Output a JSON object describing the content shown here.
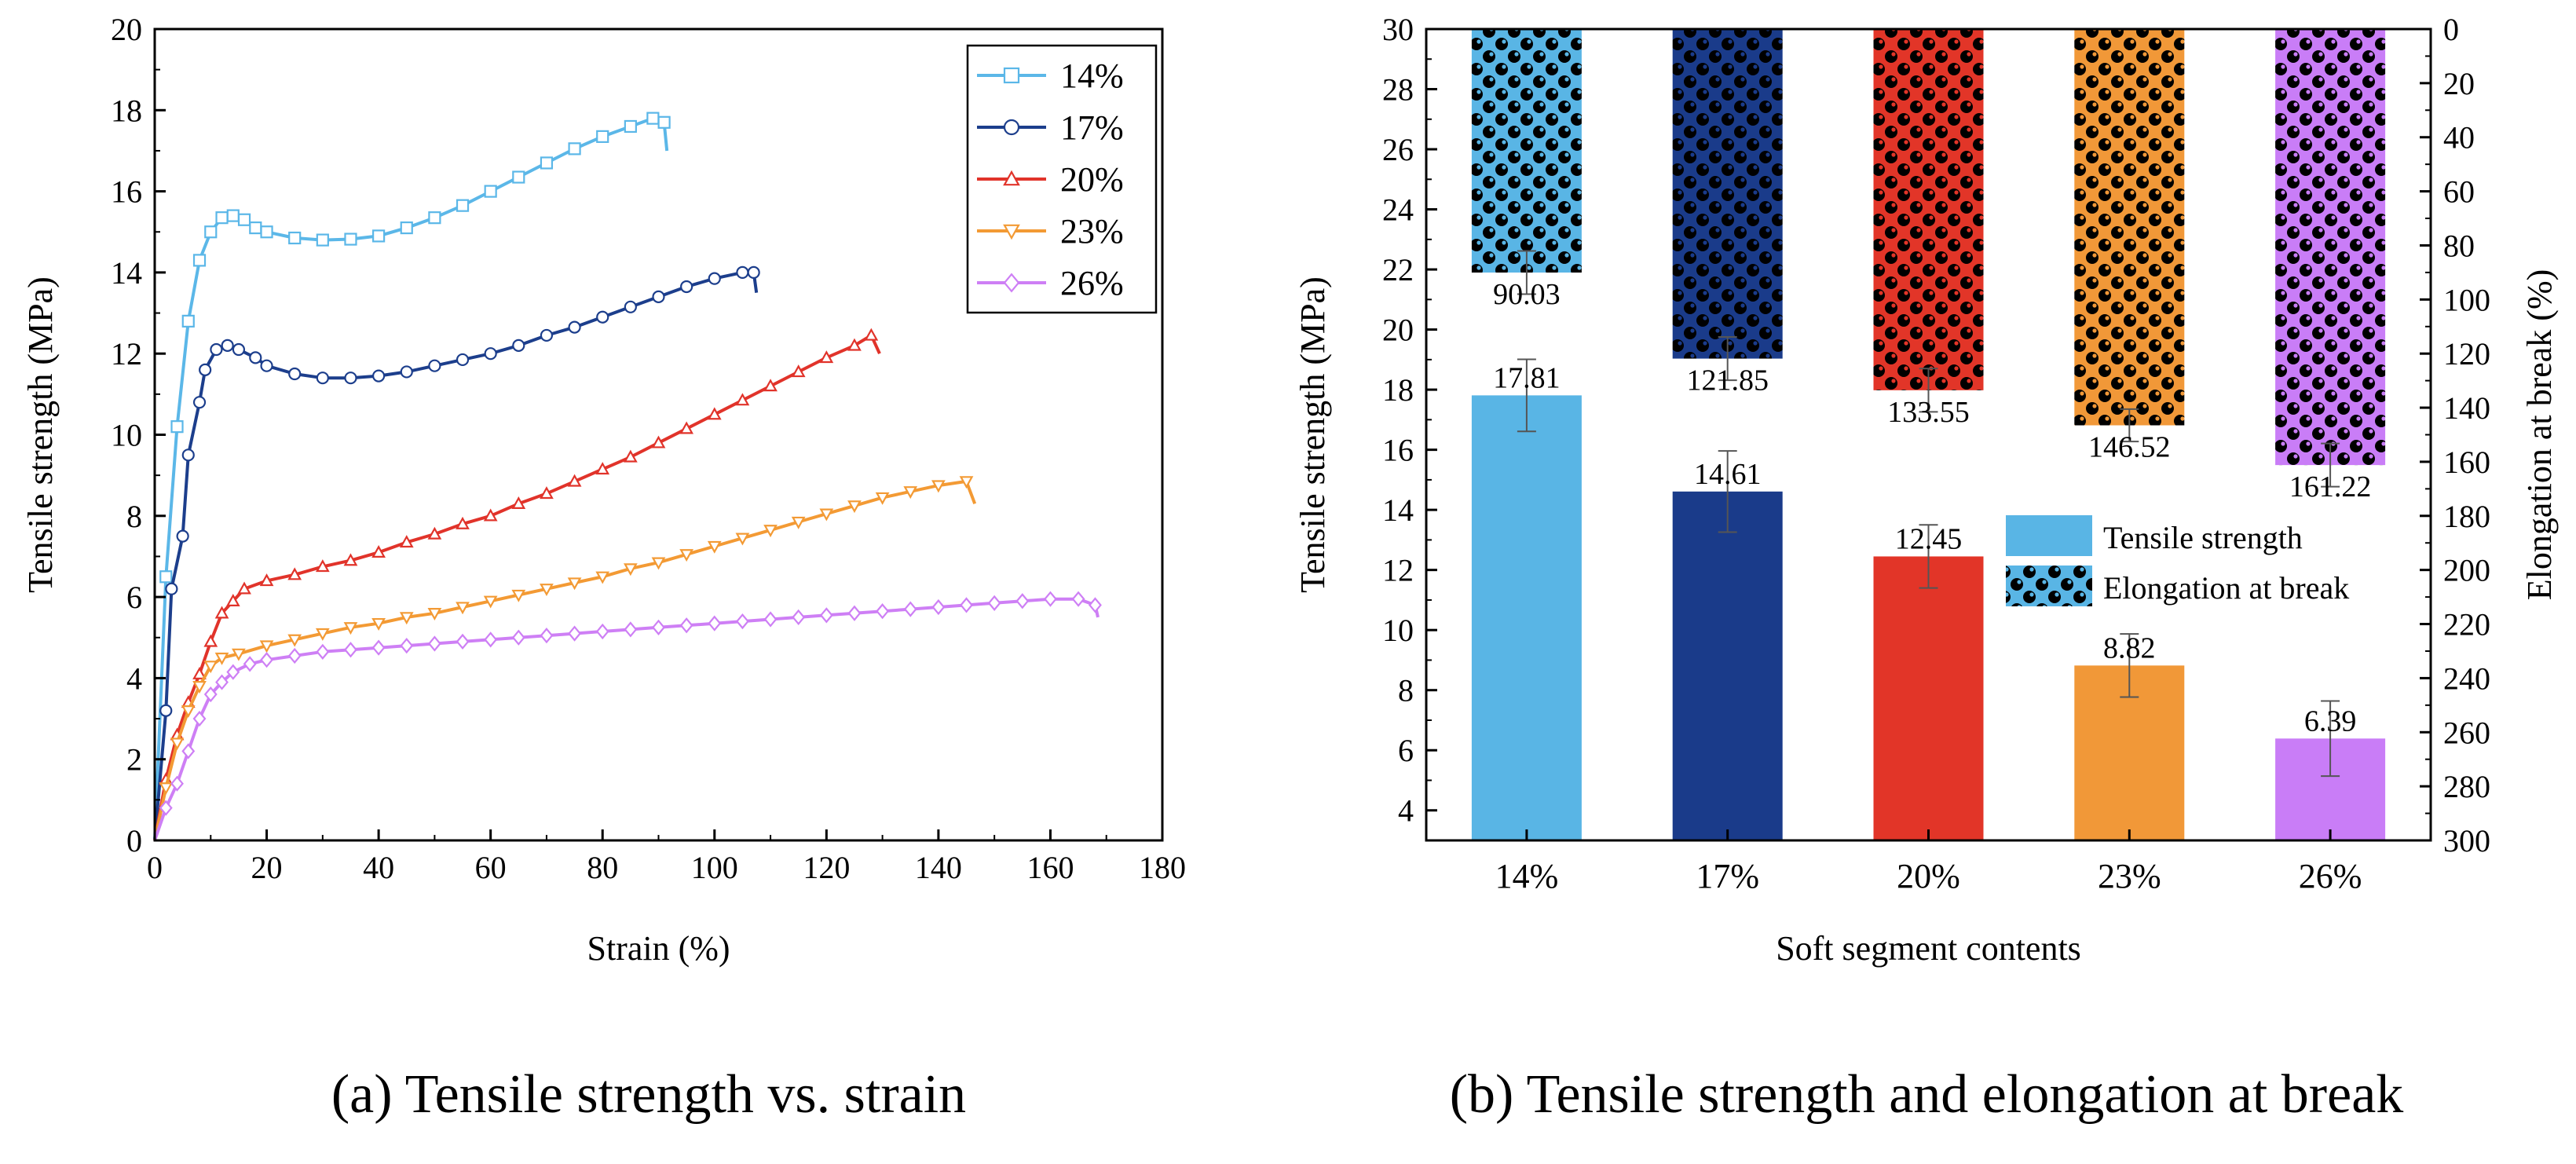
{
  "colors": {
    "c14": "#5BB7E8",
    "c17": "#1C3E8C",
    "c20": "#E1332A",
    "c23": "#F39A34",
    "c26": "#CE7FF5",
    "bar14": "#59B5E5",
    "bar17": "#1A3B8A",
    "bar20": "#E23528",
    "bar23": "#F19838",
    "bar26": "#C97DF7",
    "axis": "#000000",
    "error": "#555555"
  },
  "caption_a": "(a) Tensile strength vs. strain",
  "caption_b": "(b) Tensile strength and elongation at break",
  "chart_data": [
    {
      "type": "line",
      "xlabel": "Strain (%)",
      "ylabel": "Tensile strength (MPa)",
      "xlim": [
        0,
        180
      ],
      "ylim": [
        0,
        20
      ],
      "xticks": [
        0,
        20,
        40,
        60,
        80,
        100,
        120,
        140,
        160,
        180
      ],
      "yticks": [
        0,
        2,
        4,
        6,
        8,
        10,
        12,
        14,
        16,
        18,
        20
      ],
      "legend_position": "top-right",
      "series": [
        {
          "name": "14%",
          "color_key": "c14",
          "marker": "square",
          "points": [
            [
              0,
              0
            ],
            [
              2,
              6.5
            ],
            [
              4,
              10.2
            ],
            [
              6,
              12.8
            ],
            [
              8,
              14.3
            ],
            [
              10,
              15.0
            ],
            [
              12,
              15.35
            ],
            [
              14,
              15.4
            ],
            [
              16,
              15.3
            ],
            [
              18,
              15.1
            ],
            [
              20,
              15.0
            ],
            [
              25,
              14.85
            ],
            [
              30,
              14.8
            ],
            [
              35,
              14.82
            ],
            [
              40,
              14.9
            ],
            [
              45,
              15.1
            ],
            [
              50,
              15.35
            ],
            [
              55,
              15.65
            ],
            [
              60,
              16.0
            ],
            [
              65,
              16.35
            ],
            [
              70,
              16.7
            ],
            [
              75,
              17.05
            ],
            [
              80,
              17.35
            ],
            [
              85,
              17.6
            ],
            [
              89,
              17.8
            ],
            [
              91,
              17.7
            ],
            [
              91.5,
              17.0
            ]
          ]
        },
        {
          "name": "17%",
          "color_key": "c17",
          "marker": "circle",
          "points": [
            [
              0,
              0
            ],
            [
              2,
              3.2
            ],
            [
              3,
              6.2
            ],
            [
              5,
              7.5
            ],
            [
              6,
              9.5
            ],
            [
              8,
              10.8
            ],
            [
              9,
              11.6
            ],
            [
              11,
              12.1
            ],
            [
              13,
              12.2
            ],
            [
              15,
              12.1
            ],
            [
              18,
              11.9
            ],
            [
              20,
              11.7
            ],
            [
              25,
              11.5
            ],
            [
              30,
              11.4
            ],
            [
              35,
              11.4
            ],
            [
              40,
              11.45
            ],
            [
              45,
              11.55
            ],
            [
              50,
              11.7
            ],
            [
              55,
              11.85
            ],
            [
              60,
              12.0
            ],
            [
              65,
              12.2
            ],
            [
              70,
              12.45
            ],
            [
              75,
              12.65
            ],
            [
              80,
              12.9
            ],
            [
              85,
              13.15
            ],
            [
              90,
              13.4
            ],
            [
              95,
              13.65
            ],
            [
              100,
              13.85
            ],
            [
              105,
              14.0
            ],
            [
              107,
              14.0
            ],
            [
              107.5,
              13.5
            ]
          ]
        },
        {
          "name": "20%",
          "color_key": "c20",
          "marker": "triangle-up",
          "points": [
            [
              0,
              0
            ],
            [
              2,
              1.5
            ],
            [
              4,
              2.6
            ],
            [
              6,
              3.4
            ],
            [
              8,
              4.1
            ],
            [
              10,
              4.9
            ],
            [
              12,
              5.6
            ],
            [
              14,
              5.9
            ],
            [
              16,
              6.2
            ],
            [
              20,
              6.4
            ],
            [
              25,
              6.55
            ],
            [
              30,
              6.75
            ],
            [
              35,
              6.9
            ],
            [
              40,
              7.1
            ],
            [
              45,
              7.35
            ],
            [
              50,
              7.55
            ],
            [
              55,
              7.8
            ],
            [
              60,
              8.0
            ],
            [
              65,
              8.3
            ],
            [
              70,
              8.55
            ],
            [
              75,
              8.85
            ],
            [
              80,
              9.15
            ],
            [
              85,
              9.45
            ],
            [
              90,
              9.8
            ],
            [
              95,
              10.15
            ],
            [
              100,
              10.5
            ],
            [
              105,
              10.85
            ],
            [
              110,
              11.2
            ],
            [
              115,
              11.55
            ],
            [
              120,
              11.9
            ],
            [
              125,
              12.2
            ],
            [
              128,
              12.45
            ],
            [
              129.5,
              12.0
            ]
          ]
        },
        {
          "name": "23%",
          "color_key": "c23",
          "marker": "triangle-down",
          "points": [
            [
              0,
              0
            ],
            [
              2,
              1.3
            ],
            [
              4,
              2.4
            ],
            [
              6,
              3.2
            ],
            [
              8,
              3.8
            ],
            [
              10,
              4.3
            ],
            [
              12,
              4.5
            ],
            [
              15,
              4.6
            ],
            [
              20,
              4.8
            ],
            [
              25,
              4.95
            ],
            [
              30,
              5.1
            ],
            [
              35,
              5.25
            ],
            [
              40,
              5.35
            ],
            [
              45,
              5.5
            ],
            [
              50,
              5.6
            ],
            [
              55,
              5.75
            ],
            [
              60,
              5.9
            ],
            [
              65,
              6.05
            ],
            [
              70,
              6.2
            ],
            [
              75,
              6.35
            ],
            [
              80,
              6.5
            ],
            [
              85,
              6.7
            ],
            [
              90,
              6.85
            ],
            [
              95,
              7.05
            ],
            [
              100,
              7.25
            ],
            [
              105,
              7.45
            ],
            [
              110,
              7.65
            ],
            [
              115,
              7.85
            ],
            [
              120,
              8.05
            ],
            [
              125,
              8.25
            ],
            [
              130,
              8.45
            ],
            [
              135,
              8.6
            ],
            [
              140,
              8.75
            ],
            [
              145,
              8.85
            ],
            [
              146.5,
              8.3
            ]
          ]
        },
        {
          "name": "26%",
          "color_key": "c26",
          "marker": "diamond",
          "points": [
            [
              0,
              0
            ],
            [
              2,
              0.8
            ],
            [
              4,
              1.4
            ],
            [
              6,
              2.2
            ],
            [
              8,
              3.0
            ],
            [
              10,
              3.6
            ],
            [
              12,
              3.9
            ],
            [
              14,
              4.15
            ],
            [
              17,
              4.35
            ],
            [
              20,
              4.45
            ],
            [
              25,
              4.55
            ],
            [
              30,
              4.65
            ],
            [
              35,
              4.7
            ],
            [
              40,
              4.75
            ],
            [
              45,
              4.8
            ],
            [
              50,
              4.85
            ],
            [
              55,
              4.9
            ],
            [
              60,
              4.95
            ],
            [
              65,
              5.0
            ],
            [
              70,
              5.05
            ],
            [
              75,
              5.1
            ],
            [
              80,
              5.15
            ],
            [
              85,
              5.2
            ],
            [
              90,
              5.25
            ],
            [
              95,
              5.3
            ],
            [
              100,
              5.35
            ],
            [
              105,
              5.4
            ],
            [
              110,
              5.45
            ],
            [
              115,
              5.5
            ],
            [
              120,
              5.55
            ],
            [
              125,
              5.6
            ],
            [
              130,
              5.65
            ],
            [
              135,
              5.7
            ],
            [
              140,
              5.75
            ],
            [
              145,
              5.8
            ],
            [
              150,
              5.85
            ],
            [
              155,
              5.9
            ],
            [
              160,
              5.95
            ],
            [
              165,
              5.95
            ],
            [
              168,
              5.8
            ],
            [
              168.5,
              5.5
            ]
          ]
        }
      ]
    },
    {
      "type": "bar",
      "xlabel": "Soft segment contents",
      "ylabel": "Tensile strength (MPa)",
      "ylabel_right": "Elongation at break (%)",
      "categories": [
        "14%",
        "17%",
        "20%",
        "23%",
        "26%"
      ],
      "ylim": [
        3,
        30
      ],
      "yticks": [
        4,
        6,
        8,
        10,
        12,
        14,
        16,
        18,
        20,
        22,
        24,
        26,
        28,
        30
      ],
      "ylim_right": [
        0,
        300
      ],
      "y_right_inverted": true,
      "yticks_right": [
        0,
        20,
        40,
        60,
        80,
        100,
        120,
        140,
        160,
        180,
        200,
        220,
        240,
        260,
        280,
        300
      ],
      "legend_position": "center-right",
      "series": [
        {
          "name": "Tensile strength",
          "values": [
            17.81,
            14.61,
            12.45,
            8.82,
            6.39
          ],
          "labels": [
            "17.81",
            "14.61",
            "12.45",
            "8.82",
            "6.39"
          ],
          "errors": [
            1.2,
            1.35,
            1.05,
            1.05,
            1.25
          ]
        },
        {
          "name": "Elongation at break",
          "values": [
            90.03,
            121.85,
            133.55,
            146.52,
            161.22
          ],
          "labels": [
            "90.03",
            "121.85",
            "133.55",
            "146.52",
            "161.22"
          ],
          "errors": [
            8,
            8,
            8,
            6,
            8
          ]
        }
      ]
    }
  ]
}
